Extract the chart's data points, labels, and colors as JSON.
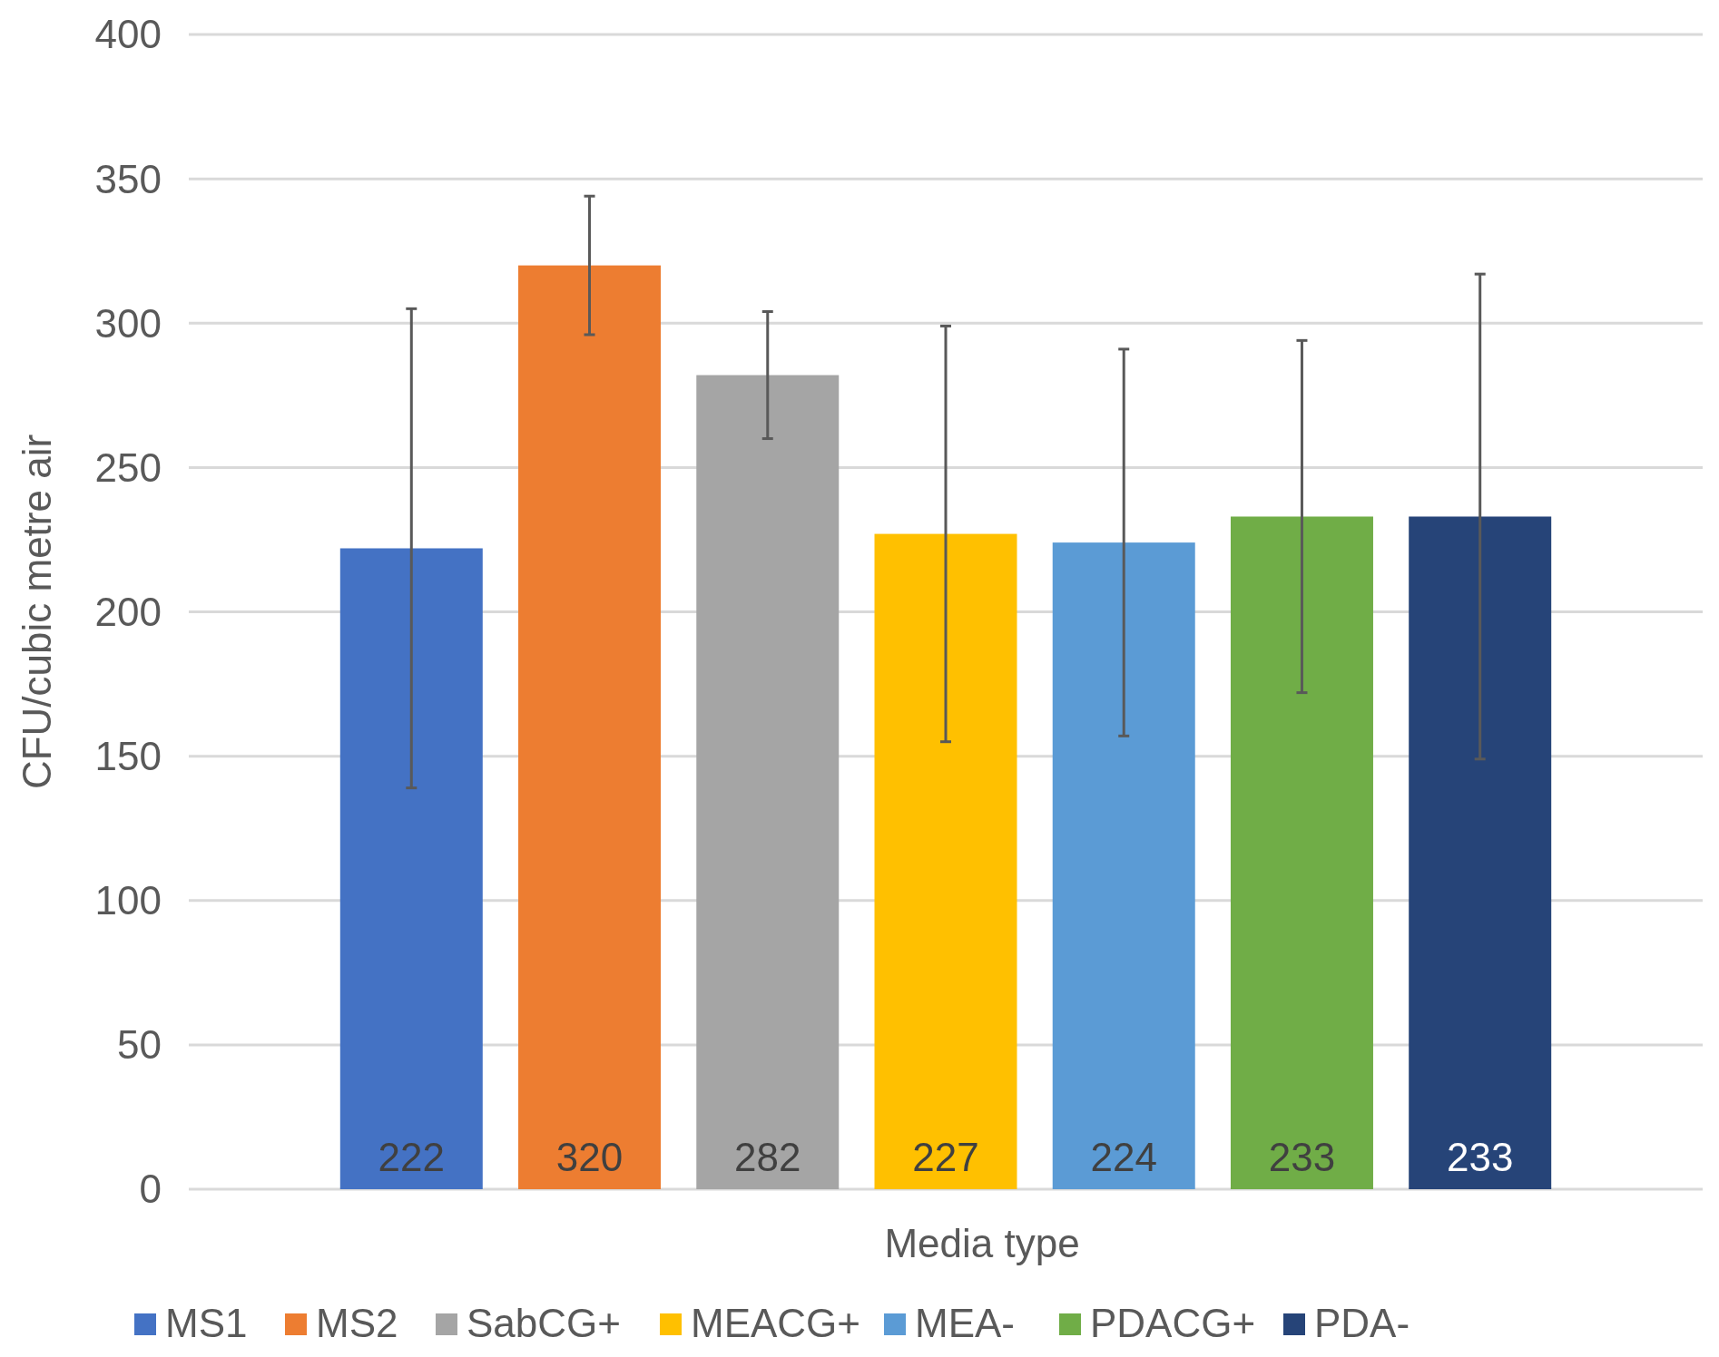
{
  "chart_data": {
    "type": "bar",
    "xlabel": "Media type",
    "ylabel": "CFU/cubic metre air",
    "categories": [
      null
    ],
    "series": [
      {
        "name": "MS1",
        "color": "#4472c4",
        "values": [
          222
        ],
        "errors": [
          83
        ]
      },
      {
        "name": "MS2",
        "color": "#ed7d31",
        "values": [
          320
        ],
        "errors": [
          24
        ]
      },
      {
        "name": "SabCG+",
        "color": "#a5a5a5",
        "values": [
          282
        ],
        "errors": [
          22
        ]
      },
      {
        "name": "MEACG+",
        "color": "#ffc000",
        "values": [
          227
        ],
        "errors": [
          72
        ]
      },
      {
        "name": "MEA-",
        "color": "#5b9bd5",
        "values": [
          224
        ],
        "errors": [
          67
        ]
      },
      {
        "name": "PDACG+",
        "color": "#70ad47",
        "values": [
          233
        ],
        "errors": [
          61
        ]
      },
      {
        "name": "PDA-",
        "color": "#264478",
        "values": [
          233
        ],
        "errors": [
          84
        ]
      }
    ],
    "ylim": [
      0,
      400
    ],
    "yticks": [
      0,
      50,
      100,
      150,
      200,
      250,
      300,
      350,
      400
    ],
    "grid": "y",
    "legend": "bottom",
    "data_labels": true
  }
}
